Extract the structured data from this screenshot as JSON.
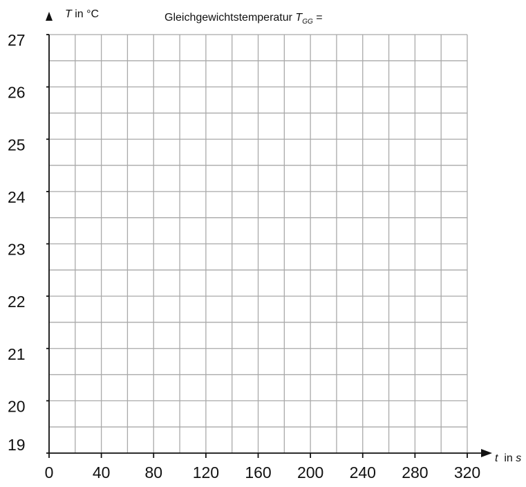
{
  "chart_data": {
    "type": "line",
    "title": "Gleichgewichtstemperatur T_GG =",
    "title_text": "Gleichgewichtstemperatur ",
    "title_symbol": "T",
    "title_subscript": "GG",
    "title_suffix": " =",
    "ylabel_symbol": "T",
    "ylabel_unit": " in °C",
    "xlabel_symbol": "t",
    "xlabel_unit_prefix": "  in ",
    "xlabel_unit": "s",
    "x_ticks": [
      0,
      40,
      80,
      120,
      160,
      200,
      240,
      280,
      320
    ],
    "y_ticks": [
      19,
      20,
      21,
      22,
      23,
      24,
      25,
      26,
      27
    ],
    "xlim": [
      0,
      320
    ],
    "ylim": [
      19,
      27
    ],
    "x_minor_step": 20,
    "y_minor_step": 0.5,
    "grid": true,
    "series": []
  }
}
